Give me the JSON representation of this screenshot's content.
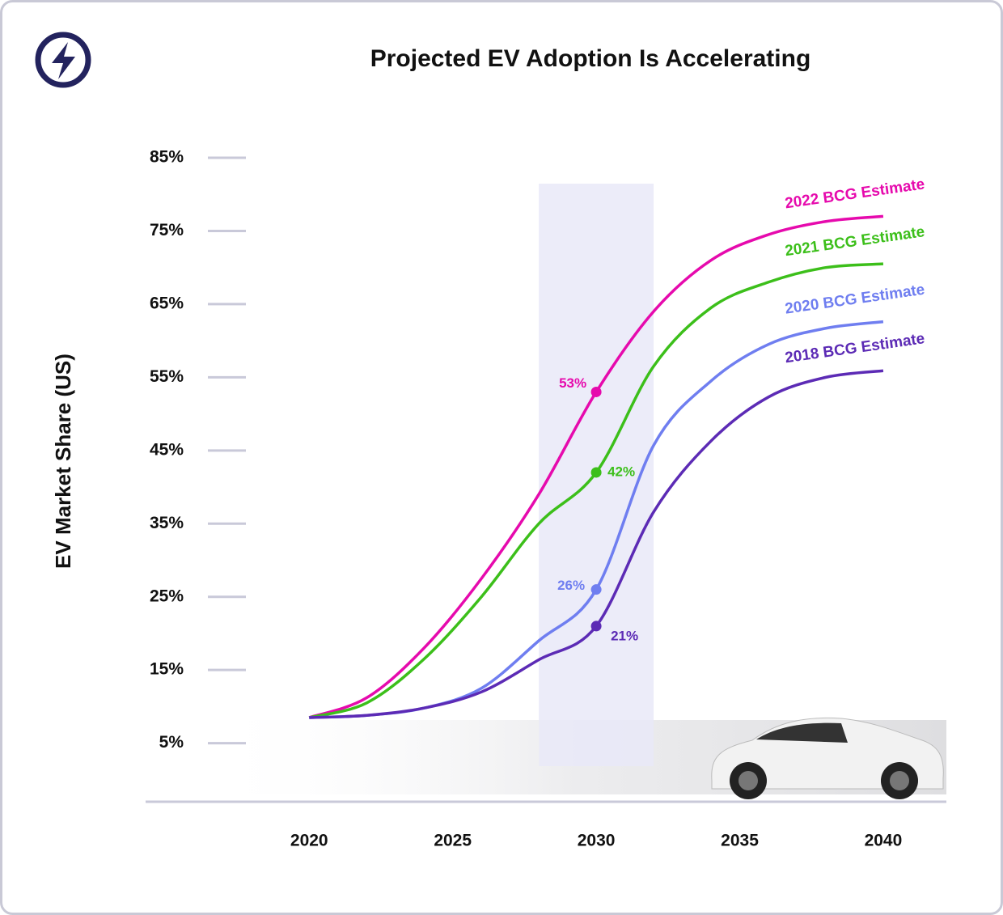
{
  "chart_data": {
    "type": "line",
    "title": "Projected EV Adoption Is Accelerating",
    "y_label": "EV Market Share (US)",
    "x": [
      2020,
      2022,
      2024,
      2026,
      2028,
      2030,
      2032,
      2034,
      2036,
      2038,
      2040
    ],
    "xlim": [
      2014.3,
      2042.2
    ],
    "xticks": [
      2020,
      2025,
      2030,
      2035,
      2040
    ],
    "ylim": [
      -3,
      88
    ],
    "yticks": [
      {
        "value": 5,
        "label": "5%"
      },
      {
        "value": 15,
        "label": "15%"
      },
      {
        "value": 25,
        "label": "25%"
      },
      {
        "value": 35,
        "label": "35%"
      },
      {
        "value": 45,
        "label": "45%"
      },
      {
        "value": 55,
        "label": "55%"
      },
      {
        "value": 65,
        "label": "65%"
      },
      {
        "value": 75,
        "label": "75%"
      },
      {
        "value": 85,
        "label": "85%"
      }
    ],
    "highlight_x": [
      2028,
      2032
    ],
    "series": [
      {
        "name": "2022 BCG Estimate",
        "color": "#e60aad",
        "values": [
          8.5,
          11.2,
          18,
          27.5,
          39,
          53,
          64,
          71,
          74.5,
          76.3,
          77
        ],
        "value_labels": [
          null,
          null,
          null,
          null,
          null,
          "53%",
          null,
          null,
          null,
          null,
          null
        ]
      },
      {
        "name": "2021 BCG Estimate",
        "color": "#3cbf1a",
        "values": [
          8.5,
          10.5,
          16.5,
          25,
          35,
          42,
          56.5,
          64.5,
          68,
          70,
          70.5
        ],
        "value_labels": [
          null,
          null,
          null,
          null,
          null,
          "42%",
          null,
          null,
          null,
          null,
          null
        ]
      },
      {
        "name": "2020 BCG Estimate",
        "color": "#6f7ef0",
        "values": [
          8.5,
          8.8,
          9.8,
          12.5,
          19,
          26,
          45.7,
          54.5,
          59.5,
          61.7,
          62.6
        ],
        "value_labels": [
          null,
          null,
          null,
          null,
          null,
          "26%",
          null,
          null,
          null,
          null,
          null
        ]
      },
      {
        "name": "2018 BCG Estimate",
        "color": "#5c2bb5",
        "values": [
          8.5,
          8.8,
          9.8,
          12,
          16.4,
          21,
          36.6,
          46.3,
          52.3,
          55,
          55.9
        ],
        "value_labels": [
          null,
          null,
          null,
          null,
          null,
          "21%",
          null,
          null,
          null,
          null,
          null
        ]
      }
    ]
  }
}
